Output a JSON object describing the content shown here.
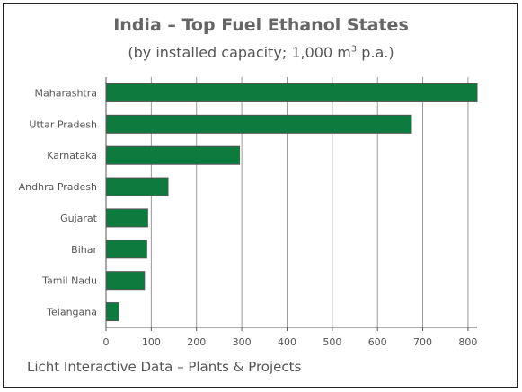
{
  "chart_data": {
    "type": "bar",
    "orientation": "horizontal",
    "title": "India – Top Fuel Ethanol States",
    "subtitle_prefix": "(by installed capacity; 1,000 m",
    "subtitle_sup": "3",
    "subtitle_suffix": " p.a.)",
    "source": "Licht Interactive Data – Plants & Projects",
    "categories": [
      "Maharashtra",
      "Uttar Pradesh",
      "Karnataka",
      "Andhra Pradesh",
      "Gujarat",
      "Bihar",
      "Tamil Nadu",
      "Telangana"
    ],
    "values": [
      820,
      675,
      295,
      137,
      92,
      90,
      85,
      28
    ],
    "xlim": [
      0,
      820
    ],
    "xticks": [
      0,
      100,
      200,
      300,
      400,
      500,
      600,
      700,
      800
    ],
    "grid": true,
    "bar_color": "#0d7a3e"
  }
}
